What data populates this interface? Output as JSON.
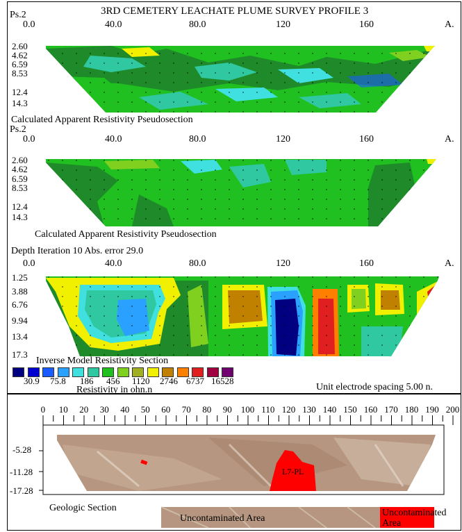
{
  "title": "3RD CEMETERY LEACHATE PLUME SURVEY PROFILE 3",
  "panels": [
    {
      "id": "measured",
      "tag": "Ps.2",
      "caption": "Calculated Apparent Resistivity Pseudosection",
      "x_ticks": [
        "0.0",
        "40.0",
        "80.0",
        "120",
        "160",
        "A."
      ],
      "depth_ticks": [
        "2.60",
        "4.62",
        "6.59",
        "8.53",
        "12.4",
        "14.3"
      ]
    },
    {
      "id": "calculated",
      "tag": "Ps.2",
      "caption": "Calculated Apparent Resistivity Pseudosection",
      "x_ticks": [
        "0.0",
        "40.0",
        "80.0",
        "120",
        "160",
        "A."
      ],
      "depth_ticks": [
        "2.60",
        "4.62",
        "6.59",
        "8.53",
        "12.4",
        "14.3"
      ]
    },
    {
      "id": "inverse",
      "tag": "Depth Iteration 10 Abs. error 29.0",
      "caption": "Inverse Model Resistivity Section",
      "x_ticks": [
        "0.0",
        "40.0",
        "80.0",
        "120",
        "160",
        "A."
      ],
      "depth_ticks": [
        "1.25",
        "3.88",
        "6.76",
        "9.94",
        "13.4",
        "17.3"
      ]
    }
  ],
  "legend": {
    "values": [
      "30.9",
      "75.8",
      "186",
      "456",
      "1120",
      "2746",
      "6737",
      "16528"
    ],
    "colors": [
      "#000080",
      "#0000d0",
      "#1a5cff",
      "#2aa0ff",
      "#40e0e0",
      "#30c8a0",
      "#20c020",
      "#80d020",
      "#a0b020",
      "#f0f000",
      "#c08000",
      "#ff8000",
      "#e02020",
      "#a00040",
      "#700070"
    ],
    "units": "Resistivity in ohn.n"
  },
  "spacing_note": "Unit electrode spacing 5.00 n.",
  "geologic": {
    "x_ticks": [
      "0",
      "10",
      "20",
      "30",
      "40",
      "50",
      "60",
      "70",
      "80",
      "90",
      "100",
      "110",
      "120",
      "130",
      "140",
      "150",
      "160",
      "170",
      "180",
      "190",
      "200"
    ],
    "depth_ticks": [
      "-5.28",
      "-11.28",
      "-17.28"
    ],
    "plume_label": "L7-PL",
    "caption": "Geologic Section",
    "legend_uncontaminated": "Uncontaminated Area",
    "legend_contaminated": "Uncontaminated Area"
  }
}
